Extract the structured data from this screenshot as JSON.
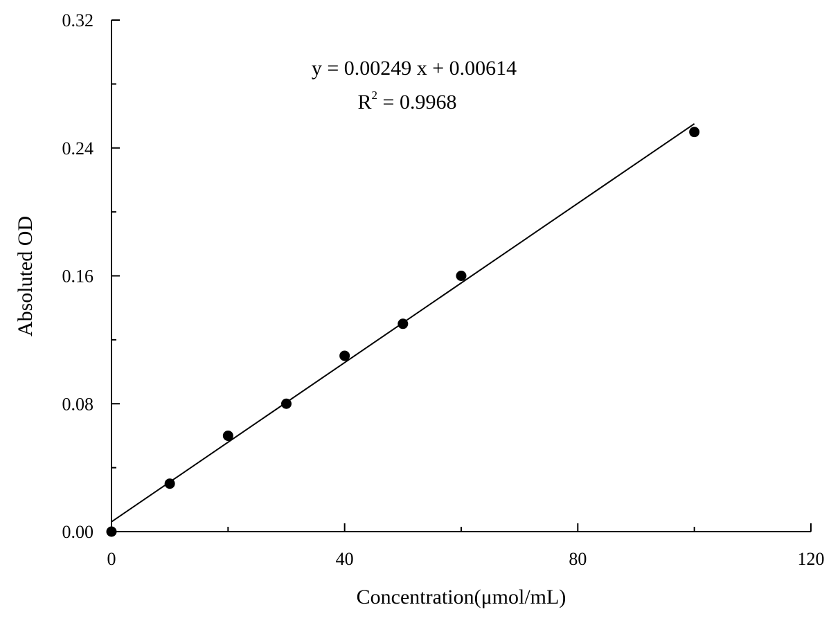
{
  "chart_data": {
    "type": "scatter",
    "xlabel": "Concentration(μmol/mL)",
    "ylabel": "Absoluted OD",
    "xlim": [
      0,
      120
    ],
    "ylim": [
      0,
      0.32
    ],
    "x_ticks": [
      "0",
      "40",
      "80",
      "120"
    ],
    "y_ticks": [
      "0.00",
      "0.08",
      "0.16",
      "0.24",
      "0.32"
    ],
    "grid": false,
    "series": [
      {
        "points": [
          {
            "x": 0,
            "y": 0.0
          },
          {
            "x": 10,
            "y": 0.03
          },
          {
            "x": 20,
            "y": 0.06
          },
          {
            "x": 30,
            "y": 0.08
          },
          {
            "x": 40,
            "y": 0.11
          },
          {
            "x": 50,
            "y": 0.13
          },
          {
            "x": 60,
            "y": 0.16
          },
          {
            "x": 100,
            "y": 0.25
          }
        ]
      }
    ],
    "fit_line": {
      "slope": 0.00249,
      "intercept": 0.00614,
      "x_range": [
        0,
        100
      ]
    },
    "annotations": {
      "equation": "y = 0.00249 x + 0.00614",
      "r2_base": "R",
      "r2_sup": "2",
      "r2_value": " = 0.9968"
    },
    "colors": {
      "marker": "#000000",
      "line": "#000000"
    }
  }
}
